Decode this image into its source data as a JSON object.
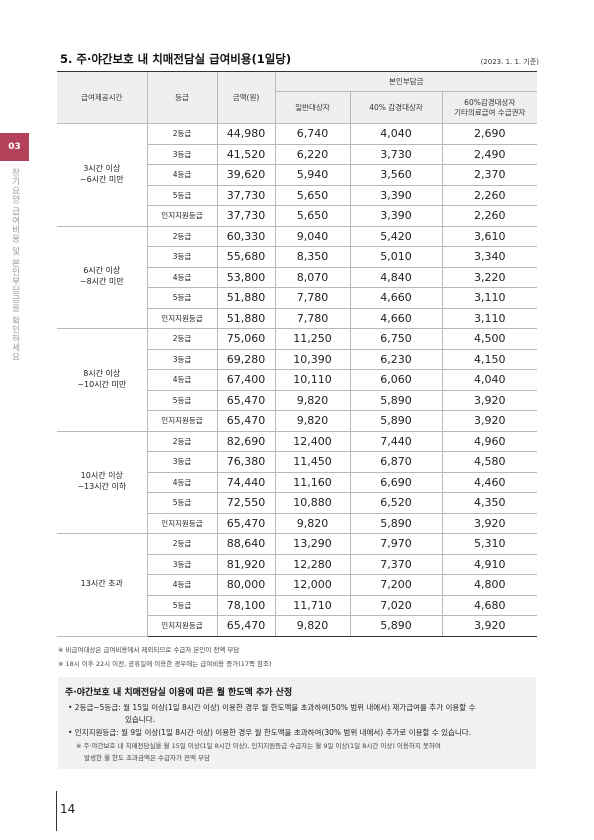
{
  "title": "5. 주·야간보호 내 치매전담실 급여비용(1일당)",
  "basis": "(2023. 1. 1. 기준)",
  "table": {
    "headers": {
      "time": "급여제공시간",
      "grade": "등급",
      "amount": "금액(원)",
      "copay_group": "본인부담금",
      "general": "일반대상자",
      "reduced40": "40% 감경대상자",
      "reduced60_l1": "60%감경대상자",
      "reduced60_l2": "기타의료급여 수급권자"
    },
    "groups": [
      {
        "time_l1": "3시간 이상",
        "time_l2": "~6시간 미만",
        "rows": [
          {
            "grade": "2등급",
            "amount": "44,980",
            "general": "6,740",
            "r40": "4,040",
            "r60": "2,690"
          },
          {
            "grade": "3등급",
            "amount": "41,520",
            "general": "6,220",
            "r40": "3,730",
            "r60": "2,490"
          },
          {
            "grade": "4등급",
            "amount": "39,620",
            "general": "5,940",
            "r40": "3,560",
            "r60": "2,370"
          },
          {
            "grade": "5등급",
            "amount": "37,730",
            "general": "5,650",
            "r40": "3,390",
            "r60": "2,260"
          },
          {
            "grade": "인지지원등급",
            "amount": "37,730",
            "general": "5,650",
            "r40": "3,390",
            "r60": "2,260"
          }
        ]
      },
      {
        "time_l1": "6시간 이상",
        "time_l2": "~8시간 미만",
        "rows": [
          {
            "grade": "2등급",
            "amount": "60,330",
            "general": "9,040",
            "r40": "5,420",
            "r60": "3,610"
          },
          {
            "grade": "3등급",
            "amount": "55,680",
            "general": "8,350",
            "r40": "5,010",
            "r60": "3,340"
          },
          {
            "grade": "4등급",
            "amount": "53,800",
            "general": "8,070",
            "r40": "4,840",
            "r60": "3,220"
          },
          {
            "grade": "5등급",
            "amount": "51,880",
            "general": "7,780",
            "r40": "4,660",
            "r60": "3,110"
          },
          {
            "grade": "인지지원등급",
            "amount": "51,880",
            "general": "7,780",
            "r40": "4,660",
            "r60": "3,110"
          }
        ]
      },
      {
        "time_l1": "8시간 이상",
        "time_l2": "~10시간 미만",
        "rows": [
          {
            "grade": "2등급",
            "amount": "75,060",
            "general": "11,250",
            "r40": "6,750",
            "r60": "4,500"
          },
          {
            "grade": "3등급",
            "amount": "69,280",
            "general": "10,390",
            "r40": "6,230",
            "r60": "4,150"
          },
          {
            "grade": "4등급",
            "amount": "67,400",
            "general": "10,110",
            "r40": "6,060",
            "r60": "4,040"
          },
          {
            "grade": "5등급",
            "amount": "65,470",
            "general": "9,820",
            "r40": "5,890",
            "r60": "3,920"
          },
          {
            "grade": "인지지원등급",
            "amount": "65,470",
            "general": "9,820",
            "r40": "5,890",
            "r60": "3,920"
          }
        ]
      },
      {
        "time_l1": "10시간 이상",
        "time_l2": "~13시간 이하",
        "rows": [
          {
            "grade": "2등급",
            "amount": "82,690",
            "general": "12,400",
            "r40": "7,440",
            "r60": "4,960"
          },
          {
            "grade": "3등급",
            "amount": "76,380",
            "general": "11,450",
            "r40": "6,870",
            "r60": "4,580"
          },
          {
            "grade": "4등급",
            "amount": "74,440",
            "general": "11,160",
            "r40": "6,690",
            "r60": "4,460"
          },
          {
            "grade": "5등급",
            "amount": "72,550",
            "general": "10,880",
            "r40": "6,520",
            "r60": "4,350"
          },
          {
            "grade": "인지지원등급",
            "amount": "65,470",
            "general": "9,820",
            "r40": "5,890",
            "r60": "3,920"
          }
        ]
      },
      {
        "time_l1": "13시간 초과",
        "time_l2": "",
        "rows": [
          {
            "grade": "2등급",
            "amount": "88,640",
            "general": "13,290",
            "r40": "7,970",
            "r60": "5,310"
          },
          {
            "grade": "3등급",
            "amount": "81,920",
            "general": "12,280",
            "r40": "7,370",
            "r60": "4,910"
          },
          {
            "grade": "4등급",
            "amount": "80,000",
            "general": "12,000",
            "r40": "7,200",
            "r60": "4,800"
          },
          {
            "grade": "5등급",
            "amount": "78,100",
            "general": "11,710",
            "r40": "7,020",
            "r60": "4,680"
          },
          {
            "grade": "인지지원등급",
            "amount": "65,470",
            "general": "9,820",
            "r40": "5,890",
            "r60": "3,920"
          }
        ]
      }
    ]
  },
  "notes": [
    "※ 비급여대상은 급여비용에서 제외되므로 수급자 본인이 전액 부담",
    "※ 18시 이후 22시 이전, 공휴일에 이용한 경우에는 급여비용 증가(17쪽 참조)"
  ],
  "box": {
    "title": "주·야간보호 내 치매전담실 이용에 따른 월 한도액 추가 산정",
    "bullet1_l1": "• 2등급~5등급: 월 15일 이상(1일 8시간 이상) 이용한 경우 월 한도액을 초과하여(50% 범위 내에서) 재가급여를 추가 이용할 수",
    "bullet1_l2": "있습니다.",
    "bullet2": "• 인지지원등급: 월 9일 이상(1일 8시간 이상) 이용한 경우 월 한도액을 초과하여(30% 범위 내에서) 추가로 이용할 수 있습니다.",
    "note_l1": "※ 주·야간보호 내 치매전담실을 월 15일 이상(1일 8시간 이상), 인지지원등급 수급자는 월 9일 이상(1일 8시간 이상) 이용하지 못하여",
    "note_l2": "발생한 월 한도 초과금액은 수급자가 전액 부담"
  },
  "side": {
    "chapter_number": "03",
    "chapter_title": "장기요양 급여비용 및 본인부담금을 확인하세요"
  },
  "page_number": "14",
  "colors": {
    "accent": "#b5405a",
    "header_bg": "#efefef",
    "box_bg": "#f1f1f1"
  }
}
